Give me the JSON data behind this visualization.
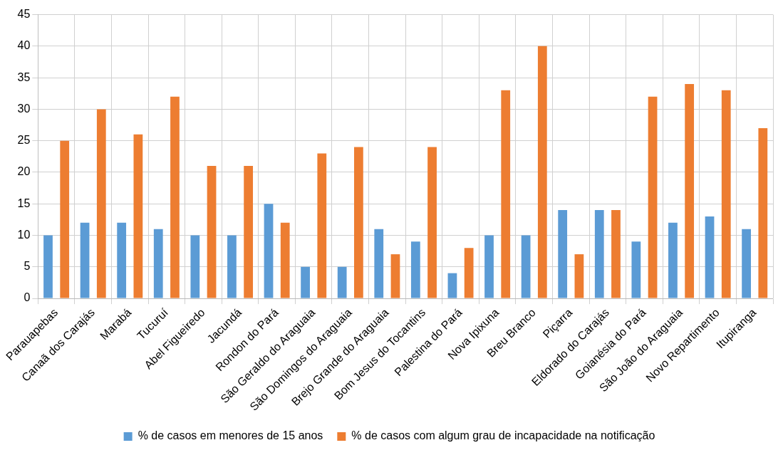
{
  "chart_data": {
    "type": "bar",
    "categories": [
      "Parauapebas",
      "Canaã dos Carajás",
      "Marabá",
      "Tucuruí",
      "Abel Figueiredo",
      "Jacundá",
      "Rondon do Pará",
      "São Geraldo do Araguaia",
      "São Domingos do Araguaia",
      "Brejo Grande do Araguaia",
      "Bom Jesus do Tocantins",
      "Palestina do Pará",
      "Nova Ipixuna",
      "Breu Branco",
      "Piçarra",
      "Eldorado do Carajás",
      "Goianésia do Pará",
      "São João do Araguaia",
      "Novo Repartimento",
      "Itupiranga"
    ],
    "series": [
      {
        "name": "% de casos em menores de 15 anos",
        "color": "#5b9bd5",
        "values": [
          10,
          12,
          12,
          11,
          10,
          10,
          15,
          5,
          5,
          11,
          9,
          4,
          10,
          10,
          14,
          14,
          9,
          12,
          13,
          11
        ]
      },
      {
        "name": "% de casos com algum grau de incapacidade na notificação",
        "color": "#ed7d31",
        "values": [
          25,
          30,
          26,
          32,
          21,
          21,
          12,
          23,
          24,
          7,
          24,
          8,
          33,
          40,
          7,
          14,
          32,
          34,
          33,
          27
        ]
      }
    ],
    "ylim": [
      0,
      45
    ],
    "yticks": [
      0,
      5,
      10,
      15,
      20,
      25,
      30,
      35,
      40,
      45
    ],
    "grid": true,
    "legend": "bottom"
  }
}
